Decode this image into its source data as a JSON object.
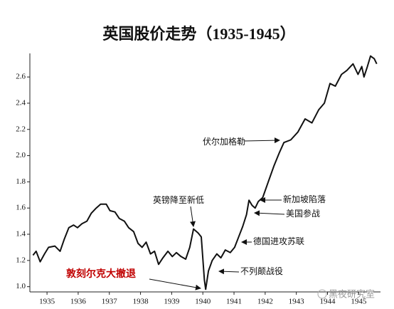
{
  "chart_data": {
    "type": "line",
    "title": "英国股价走势（1935-1945）",
    "color": "#111111",
    "x": [
      1934.55,
      1934.65,
      1934.78,
      1934.92,
      1935.05,
      1935.25,
      1935.42,
      1935.55,
      1935.7,
      1935.85,
      1935.98,
      1936.12,
      1936.28,
      1936.42,
      1936.58,
      1936.72,
      1936.9,
      1937.02,
      1937.18,
      1937.32,
      1937.48,
      1937.62,
      1937.78,
      1937.92,
      1938.05,
      1938.18,
      1938.32,
      1938.45,
      1938.58,
      1938.72,
      1938.88,
      1939.02,
      1939.15,
      1939.3,
      1939.45,
      1939.58,
      1939.7,
      1939.85,
      1939.95,
      1940.05,
      1940.09,
      1940.18,
      1940.3,
      1940.45,
      1940.58,
      1940.72,
      1940.88,
      1941.02,
      1941.15,
      1941.28,
      1941.4,
      1941.48,
      1941.58,
      1941.68,
      1941.78,
      1941.92,
      1942.1,
      1942.28,
      1942.45,
      1942.6,
      1942.82,
      1943.05,
      1943.28,
      1943.5,
      1943.72,
      1943.9,
      1944.08,
      1944.25,
      1944.45,
      1944.62,
      1944.82,
      1944.98,
      1945.1,
      1945.17,
      1945.28,
      1945.38,
      1945.5,
      1945.58
    ],
    "values": [
      1.24,
      1.27,
      1.19,
      1.25,
      1.3,
      1.31,
      1.27,
      1.36,
      1.45,
      1.47,
      1.45,
      1.48,
      1.5,
      1.56,
      1.6,
      1.63,
      1.63,
      1.58,
      1.57,
      1.52,
      1.5,
      1.45,
      1.42,
      1.33,
      1.3,
      1.34,
      1.25,
      1.27,
      1.17,
      1.22,
      1.27,
      1.23,
      1.26,
      1.23,
      1.21,
      1.3,
      1.44,
      1.41,
      1.38,
      1.05,
      0.98,
      1.12,
      1.2,
      1.25,
      1.22,
      1.28,
      1.26,
      1.3,
      1.38,
      1.46,
      1.55,
      1.66,
      1.62,
      1.6,
      1.65,
      1.68,
      1.8,
      1.92,
      2.02,
      2.1,
      2.12,
      2.18,
      2.28,
      2.25,
      2.35,
      2.4,
      2.55,
      2.53,
      2.62,
      2.65,
      2.7,
      2.62,
      2.68,
      2.6,
      2.68,
      2.76,
      2.74,
      2.7
    ],
    "xlim": [
      1934.45,
      1945.7
    ],
    "xticks": [
      1935,
      1936,
      1937,
      1938,
      1939,
      1940,
      1941,
      1942,
      1943,
      1944,
      1945
    ],
    "ylim": [
      0.96,
      2.78
    ],
    "yticks": [
      {
        "value": 1,
        "label": "1.0"
      },
      1.2,
      1.4,
      1.6,
      1.8,
      {
        "value": 2,
        "label": "2.0"
      },
      2.2,
      2.4,
      2.6
    ],
    "annotations": [
      {
        "text": "伏尔加格勒",
        "color": "#111111"
      },
      {
        "text": "英镑降至新低",
        "color": "#111111"
      },
      {
        "text": "新加坡陷落",
        "color": "#111111"
      },
      {
        "text": "美国参战",
        "color": "#111111"
      },
      {
        "text": "德国进攻苏联",
        "color": "#111111"
      },
      {
        "text": "不列颠战役",
        "color": "#111111"
      },
      {
        "text": "敦刻尔克大撤退",
        "color": "#c00000"
      }
    ]
  },
  "watermark": "黑夜研究室"
}
